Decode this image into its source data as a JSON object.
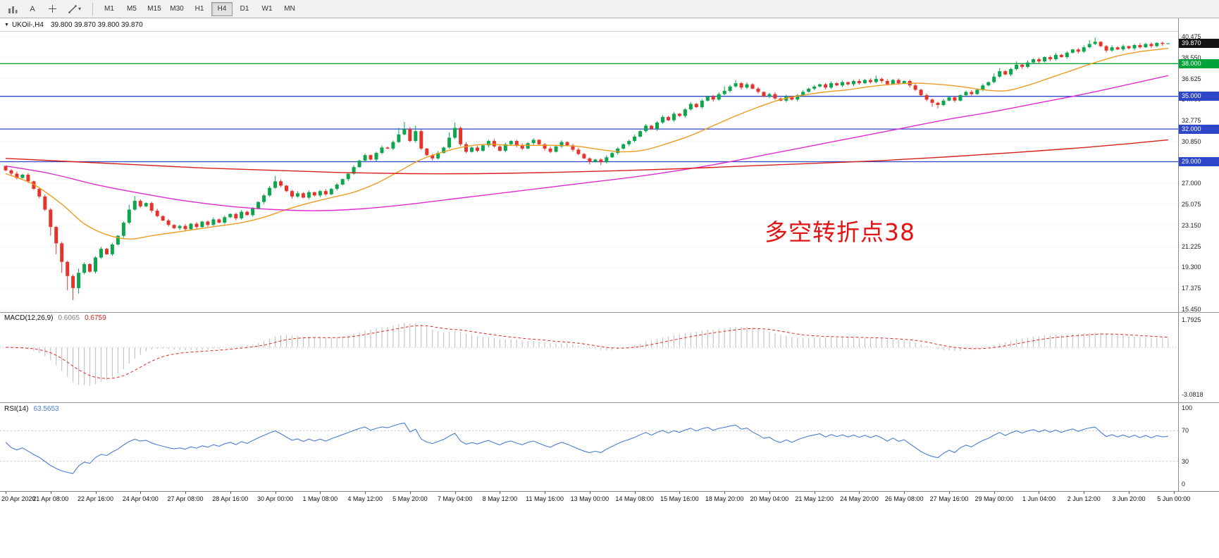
{
  "toolbar": {
    "left_tools": [
      {
        "name": "bar-chart"
      },
      {
        "name": "pointer",
        "label": "A"
      },
      {
        "name": "crosshair"
      },
      {
        "name": "draw-tools",
        "caret": "▾"
      }
    ],
    "timeframes": [
      "M1",
      "M5",
      "M15",
      "M30",
      "H1",
      "H4",
      "D1",
      "W1",
      "MN"
    ],
    "active_timeframe": "H4"
  },
  "header": {
    "expand_icon": "▼",
    "symbol": "UKOil-,H4",
    "ohlc": "39.800 39.870 39.800 39.870"
  },
  "price_axis": {
    "grid": [
      {
        "price": 40.475,
        "label": "40.475"
      },
      {
        "price": 38.55,
        "label": "38.550"
      },
      {
        "price": 36.625,
        "label": "36.625"
      },
      {
        "price": 34.7,
        "label": "34.700"
      },
      {
        "price": 32.775,
        "label": "32.775"
      },
      {
        "price": 30.85,
        "label": "30.850"
      },
      {
        "price": 28.925,
        "label": ""
      },
      {
        "price": 27.0,
        "label": "27.000"
      },
      {
        "price": 25.075,
        "label": "25.075"
      },
      {
        "price": 23.15,
        "label": "23.150"
      },
      {
        "price": 21.225,
        "label": "21.225"
      },
      {
        "price": 19.3,
        "label": "19.300"
      },
      {
        "price": 17.375,
        "label": "17.375"
      },
      {
        "price": 15.45,
        "label": "15.450"
      }
    ],
    "current": {
      "label": "39.870",
      "price": 39.87,
      "bg": "#141414",
      "fg": "#ffffff"
    }
  },
  "levels": [
    {
      "label": "38.000",
      "price": 38.0,
      "color": "#00A33C"
    },
    {
      "label": "35.000",
      "price": 35.0,
      "color": "#2E46C8"
    },
    {
      "label": "32.000",
      "price": 32.0,
      "color": "#2E46C8"
    },
    {
      "label": "29.000",
      "price": 29.0,
      "color": "#2E46C8"
    }
  ],
  "annotation": {
    "text": "多空转折点38",
    "color": "#E21414"
  },
  "chart_data": {
    "type": "candlestick",
    "symbol": "UKOil-",
    "timeframe": "H4",
    "price_axis_top": 40.863,
    "price_axis_bottom": 15.19,
    "up_color": "#0DA54E",
    "down_color": "#E5352B",
    "candles_per_label": 8,
    "candles": {
      "first_open": 28.6,
      "closes": [
        28.2,
        27.9,
        27.5,
        27.8,
        27.2,
        26.5,
        25.8,
        24.6,
        23.0,
        21.5,
        19.8,
        18.5,
        17.4,
        18.8,
        19.6,
        18.9,
        20.2,
        21.0,
        20.5,
        21.4,
        22.2,
        23.4,
        24.6,
        25.4,
        24.9,
        25.2,
        24.5,
        24.0,
        23.6,
        23.2,
        22.9,
        23.1,
        22.8,
        23.3,
        23.0,
        23.5,
        23.2,
        23.7,
        23.4,
        23.9,
        24.2,
        23.8,
        24.4,
        24.1,
        24.7,
        25.3,
        25.9,
        26.6,
        27.2,
        26.8,
        26.3,
        25.8,
        26.1,
        25.7,
        26.2,
        25.9,
        26.3,
        26.0,
        26.5,
        26.9,
        27.4,
        27.9,
        28.5,
        29.1,
        29.6,
        29.2,
        29.8,
        30.3,
        30.2,
        30.8,
        31.5,
        32.0,
        30.9,
        31.8,
        30.2,
        29.6,
        29.3,
        29.8,
        30.3,
        31.2,
        32.1,
        30.6,
        29.9,
        30.3,
        30.0,
        30.5,
        30.9,
        30.4,
        30.0,
        30.6,
        30.9,
        30.5,
        30.2,
        30.7,
        31.0,
        30.6,
        30.2,
        29.9,
        30.4,
        30.8,
        30.5,
        30.1,
        29.7,
        29.3,
        29.0,
        29.2,
        28.95,
        29.4,
        29.8,
        30.2,
        30.6,
        30.9,
        31.3,
        31.8,
        32.3,
        32.0,
        32.6,
        33.1,
        32.8,
        33.4,
        33.2,
        33.8,
        34.3,
        34.0,
        34.6,
        35.0,
        34.7,
        35.2,
        35.5,
        35.9,
        36.2,
        35.8,
        36.1,
        35.7,
        35.4,
        35.0,
        35.2,
        34.8,
        34.6,
        35.0,
        34.7,
        35.1,
        35.4,
        35.7,
        35.9,
        36.1,
        35.8,
        36.2,
        36.0,
        36.3,
        36.1,
        36.4,
        36.2,
        36.5,
        36.3,
        36.6,
        36.4,
        36.1,
        36.5,
        36.2,
        36.4,
        36.0,
        35.6,
        35.1,
        34.7,
        34.4,
        34.2,
        34.6,
        34.9,
        34.6,
        35.1,
        35.4,
        35.2,
        35.6,
        36.0,
        36.3,
        36.8,
        37.3,
        37.0,
        37.5,
        37.9,
        37.7,
        38.1,
        38.4,
        38.2,
        38.6,
        38.4,
        38.8,
        38.6,
        39.0,
        39.3,
        39.1,
        39.5,
        39.8,
        40.0,
        39.6,
        39.2,
        39.5,
        39.3,
        39.6,
        39.4,
        39.7,
        39.5,
        39.8,
        39.6,
        39.9,
        39.8,
        39.87
      ],
      "wick_overrides": {
        "8": [
          0.15,
          0.8
        ],
        "9": [
          0.1,
          1.0
        ],
        "10": [
          0.15,
          1.0
        ],
        "11": [
          0.1,
          1.3
        ],
        "12": [
          0.15,
          1.1
        ],
        "13": [
          0.4,
          0.5
        ],
        "22": [
          0.45,
          0.15
        ],
        "23": [
          0.45,
          0.1
        ],
        "48": [
          0.5,
          0.1
        ],
        "70": [
          0.6,
          0.1
        ],
        "71": [
          0.65,
          0.1
        ],
        "73": [
          0.5,
          0.15
        ],
        "79": [
          0.5,
          0.1
        ],
        "80": [
          0.5,
          0.12
        ],
        "104": [
          0.1,
          0.25
        ],
        "106": [
          0.1,
          0.25
        ],
        "128": [
          0.4,
          0.1
        ],
        "130": [
          0.3,
          0.1
        ],
        "155": [
          0.3,
          0.1
        ],
        "165": [
          0.1,
          0.35
        ],
        "166": [
          0.1,
          0.3
        ],
        "176": [
          0.3,
          0.1
        ],
        "177": [
          0.3,
          0.1
        ],
        "180": [
          0.3,
          0.1
        ],
        "193": [
          0.35,
          0.1
        ],
        "194": [
          0.4,
          0.1
        ],
        "207": [
          0,
          0
        ]
      }
    },
    "moving_averages": [
      {
        "name": "ma-fast",
        "color": "#ED9B21",
        "points": [
          [
            0,
            27.9
          ],
          [
            5,
            26.9
          ],
          [
            10,
            25.1
          ],
          [
            14,
            23.3
          ],
          [
            18,
            22.3
          ],
          [
            22,
            21.9
          ],
          [
            26,
            22.2
          ],
          [
            30,
            22.5
          ],
          [
            34,
            22.8
          ],
          [
            38,
            23.1
          ],
          [
            42,
            23.4
          ],
          [
            46,
            23.9
          ],
          [
            50,
            24.6
          ],
          [
            54,
            25.2
          ],
          [
            58,
            25.7
          ],
          [
            62,
            26.2
          ],
          [
            66,
            27.0
          ],
          [
            70,
            28.1
          ],
          [
            74,
            29.2
          ],
          [
            78,
            29.9
          ],
          [
            82,
            30.4
          ],
          [
            86,
            30.6
          ],
          [
            90,
            30.5
          ],
          [
            94,
            30.5
          ],
          [
            98,
            30.5
          ],
          [
            102,
            30.4
          ],
          [
            106,
            30.1
          ],
          [
            110,
            29.9
          ],
          [
            114,
            30.1
          ],
          [
            118,
            30.7
          ],
          [
            122,
            31.4
          ],
          [
            126,
            32.3
          ],
          [
            130,
            33.2
          ],
          [
            134,
            34.0
          ],
          [
            138,
            34.7
          ],
          [
            142,
            35.1
          ],
          [
            146,
            35.4
          ],
          [
            150,
            35.6
          ],
          [
            154,
            35.9
          ],
          [
            158,
            36.1
          ],
          [
            162,
            36.2
          ],
          [
            166,
            36.1
          ],
          [
            170,
            35.9
          ],
          [
            174,
            35.6
          ],
          [
            178,
            35.5
          ],
          [
            182,
            36.0
          ],
          [
            186,
            36.7
          ],
          [
            190,
            37.4
          ],
          [
            194,
            38.1
          ],
          [
            198,
            38.7
          ],
          [
            202,
            39.1
          ],
          [
            207,
            39.4
          ]
        ]
      },
      {
        "name": "ma-mid",
        "color": "#E02CD0",
        "points": [
          [
            0,
            28.6
          ],
          [
            8,
            27.9
          ],
          [
            16,
            26.9
          ],
          [
            24,
            26.1
          ],
          [
            32,
            25.4
          ],
          [
            40,
            24.9
          ],
          [
            48,
            24.6
          ],
          [
            56,
            24.5
          ],
          [
            64,
            24.7
          ],
          [
            72,
            25.1
          ],
          [
            80,
            25.6
          ],
          [
            88,
            26.1
          ],
          [
            96,
            26.6
          ],
          [
            104,
            27.1
          ],
          [
            112,
            27.6
          ],
          [
            120,
            28.2
          ],
          [
            128,
            28.9
          ],
          [
            136,
            29.7
          ],
          [
            144,
            30.5
          ],
          [
            152,
            31.3
          ],
          [
            160,
            32.1
          ],
          [
            168,
            32.9
          ],
          [
            176,
            33.6
          ],
          [
            184,
            34.4
          ],
          [
            192,
            35.2
          ],
          [
            200,
            36.1
          ],
          [
            207,
            36.9
          ]
        ]
      },
      {
        "name": "ma-slow",
        "color": "#D6211C",
        "points": [
          [
            0,
            29.3
          ],
          [
            12,
            29.0
          ],
          [
            24,
            28.7
          ],
          [
            36,
            28.4
          ],
          [
            48,
            28.2
          ],
          [
            60,
            28.0
          ],
          [
            72,
            27.9
          ],
          [
            84,
            27.9
          ],
          [
            96,
            28.0
          ],
          [
            108,
            28.15
          ],
          [
            120,
            28.35
          ],
          [
            132,
            28.6
          ],
          [
            144,
            28.85
          ],
          [
            156,
            29.1
          ],
          [
            168,
            29.45
          ],
          [
            180,
            29.85
          ],
          [
            192,
            30.3
          ],
          [
            200,
            30.65
          ],
          [
            207,
            31.0
          ]
        ]
      }
    ],
    "macd": {
      "label": "MACD(12,26,9)",
      "value_main": "0.6065",
      "value_signal": "0.6759",
      "params": {
        "fast": 12,
        "slow": 26,
        "signal": 9
      },
      "axis_max": 1.7925,
      "axis_min": -3.0818,
      "axis_max_label": "1.7925",
      "axis_min_label": "-3.0818",
      "hist_color": "#C4C4C4",
      "signal_color": "#E02A22"
    },
    "rsi": {
      "label": "RSI(14)",
      "value": "63.5653",
      "period": 14,
      "levels": [
        100,
        70,
        30,
        0
      ],
      "line_color": "#4B7DD3"
    },
    "time_labels": [
      "20 Apr 2020",
      "21 Apr 08:00",
      "22 Apr 16:00",
      "24 Apr 04:00",
      "27 Apr 08:00",
      "28 Apr 16:00",
      "30 Apr 00:00",
      "1 May 08:00",
      "4 May 12:00",
      "5 May 20:00",
      "7 May 04:00",
      "8 May 12:00",
      "11 May 16:00",
      "13 May 00:00",
      "14 May 08:00",
      "15 May 16:00",
      "18 May 20:00",
      "20 May 04:00",
      "21 May 12:00",
      "24 May 20:00",
      "26 May 08:00",
      "27 May 16:00",
      "29 May 00:00",
      "1 Jun 04:00",
      "2 Jun 12:00",
      "3 Jun 20:00",
      "5 Jun 00:00"
    ]
  }
}
